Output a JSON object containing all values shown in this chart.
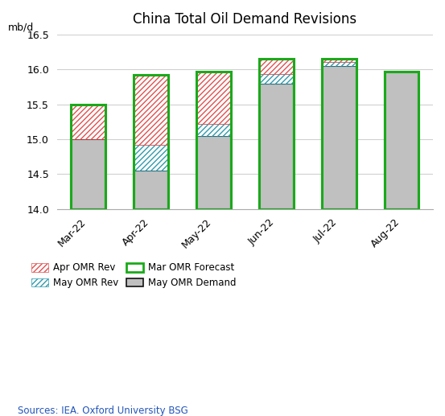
{
  "title": "China Total Oil Demand Revisions",
  "ylabel": "mb/d",
  "source": "Sources: IEA. Oxford University BSG",
  "categories": [
    "Mar-22",
    "Apr-22",
    "May-22",
    "Jun-22",
    "Jul-22",
    "Aug-22"
  ],
  "ylim": [
    14.0,
    16.5
  ],
  "yticks": [
    14.0,
    14.5,
    15.0,
    15.5,
    16.0,
    16.5
  ],
  "may_omr_demand": [
    15.0,
    14.55,
    15.05,
    15.8,
    16.05,
    15.97
  ],
  "apr_omr_rev": [
    0.5,
    1.0,
    0.75,
    0.22,
    0.04,
    0.0
  ],
  "may_omr_rev": [
    0.0,
    0.37,
    0.17,
    0.13,
    0.06,
    0.0
  ],
  "mar_omr_forecast": [
    15.5,
    15.92,
    15.97,
    16.15,
    16.15,
    15.97
  ],
  "bar_width": 0.55,
  "gray_color": "#c0c0c0",
  "red_hatch_color": "#e05050",
  "teal_hatch_color": "#2e9aad",
  "green_outline_color": "#1aaa1a",
  "black_outline_color": "#111111",
  "background_color": "#ffffff"
}
